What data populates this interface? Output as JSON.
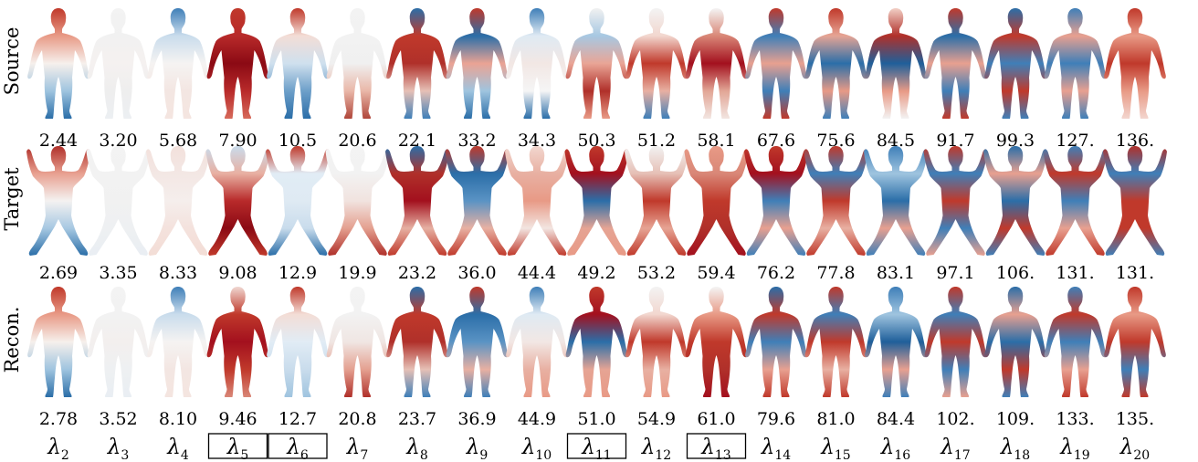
{
  "rows": [
    {
      "label": "Source",
      "values": [
        "2.44",
        "3.20",
        "5.68",
        "7.90",
        "10.5",
        "20.6",
        "22.1",
        "33.2",
        "34.3",
        "50.3",
        "51.2",
        "58.1",
        "67.6",
        "75.6",
        "84.5",
        "91.7",
        "99.3",
        "127.",
        "136."
      ]
    },
    {
      "label": "Target",
      "values": [
        "2.69",
        "3.35",
        "8.33",
        "9.08",
        "12.9",
        "19.9",
        "23.2",
        "36.0",
        "44.4",
        "49.2",
        "53.2",
        "59.4",
        "76.2",
        "77.8",
        "83.1",
        "97.1",
        "106.",
        "131.",
        "131."
      ]
    },
    {
      "label": "Recon.",
      "values": [
        "2.78",
        "3.52",
        "8.10",
        "9.46",
        "12.7",
        "20.8",
        "23.7",
        "36.9",
        "44.9",
        "51.0",
        "54.9",
        "61.0",
        "79.6",
        "81.0",
        "84.4",
        "102.",
        "109.",
        "133.",
        "135."
      ]
    }
  ],
  "eigen_symbol": "λ",
  "eigen_indices": [
    "2",
    "3",
    "4",
    "5",
    "6",
    "7",
    "8",
    "9",
    "10",
    "11",
    "12",
    "13",
    "14",
    "15",
    "16",
    "17",
    "18",
    "19",
    "20"
  ],
  "boxed_indices": [
    "5",
    "6",
    "11",
    "13"
  ],
  "colormap": {
    "negative": "#1b5a9c",
    "neutral": "#f7f7f7",
    "positive": "#a3101e"
  },
  "figures": [
    [
      [
        "#c0392b",
        "#e89a86",
        "#f6f0ec",
        "#9fc4df",
        "#2b6ea8"
      ],
      [
        "#f3f3f3",
        "#f1f1f1",
        "#f5f1f0",
        "#eeeeee",
        "#eceff2"
      ],
      [
        "#3f7fb8",
        "#c9dcec",
        "#f5f3f2",
        "#f3e6e2",
        "#f4e5e0"
      ],
      [
        "#c0392b",
        "#b82a2a",
        "#8b0a14",
        "#b82a2a",
        "#d66a5a"
      ],
      [
        "#c0392b",
        "#f3ddd6",
        "#cfe0ee",
        "#6d9fc9",
        "#2b6ea8"
      ],
      [
        "#f3f3f3",
        "#f2f2f2",
        "#f0f0f0",
        "#e9b7a8",
        "#b0463a"
      ],
      [
        "#2b6ea8",
        "#c0392b",
        "#b0302a",
        "#e6c0b6",
        "#3f7fb8"
      ],
      [
        "#c0392b",
        "#2b6ea8",
        "#eaa394",
        "#9fc4df",
        "#2b6ea8"
      ],
      [
        "#3f7fb8",
        "#dfeaf3",
        "#f2e7e4",
        "#f5f5f5",
        "#2b6ea8"
      ],
      [
        "#f1f1f1",
        "#a7c8e2",
        "#e9a596",
        "#b0302a",
        "#e89a86"
      ],
      [
        "#f3f3f3",
        "#f2d7cf",
        "#c0392b",
        "#e8b0a2",
        "#3f7fb8"
      ],
      [
        "#f4f4f4",
        "#d98777",
        "#a3101e",
        "#e2a696",
        "#f2e5e1"
      ],
      [
        "#c0392b",
        "#3f7fb8",
        "#e8a090",
        "#3f7fb8",
        "#c0392b"
      ],
      [
        "#c0392b",
        "#e6a494",
        "#2b6ea8",
        "#e89a86",
        "#3f7fb8"
      ],
      [
        "#f2d0c6",
        "#b0302a",
        "#1f5f9a",
        "#e89a86",
        "#f3f3f3"
      ],
      [
        "#c0392b",
        "#2b6ea8",
        "#e8a090",
        "#3f7fb8",
        "#c0392b"
      ],
      [
        "#2b6ea8",
        "#c0392b",
        "#3f7fb8",
        "#c0392b",
        "#3f7fb8"
      ],
      [
        "#3f7fb8",
        "#e8a090",
        "#3f7fb8",
        "#e8a090",
        "#3f7fb8"
      ],
      [
        "#c0392b",
        "#e89a86",
        "#c0392b",
        "#e89a86",
        "#f3d6cf"
      ]
    ],
    [
      [
        "#b0302a",
        "#e8a090",
        "#f4f2f1",
        "#a7c8e2",
        "#2b6ea8"
      ],
      [
        "#f3f3f3",
        "#f2f2f2",
        "#f1f1f1",
        "#eef0f2",
        "#e9eef3"
      ],
      [
        "#f3e1dc",
        "#f3e7e4",
        "#f5eeec",
        "#f4e2dd",
        "#f3ddd6"
      ],
      [
        "#c9dcec",
        "#e8b0a2",
        "#b82a2a",
        "#8b0a14",
        "#c0392b"
      ],
      [
        "#c0392b",
        "#e1ecf5",
        "#dfeaf3",
        "#c9dcec",
        "#2b6ea8"
      ],
      [
        "#f3f3f3",
        "#f2f2f2",
        "#f1e3df",
        "#e4a090",
        "#b0302a"
      ],
      [
        "#2b6ea8",
        "#b0302a",
        "#a3101e",
        "#e6b0a2",
        "#c0392b"
      ],
      [
        "#c0392b",
        "#2b6ea8",
        "#5a93c4",
        "#e8b0a2",
        "#c0392b"
      ],
      [
        "#f2d7cf",
        "#e8b0a2",
        "#e89a86",
        "#f2e5e1",
        "#c0392b"
      ],
      [
        "#c0392b",
        "#a3101e",
        "#2b6ea8",
        "#e6a494",
        "#e89a86"
      ],
      [
        "#f2f2f2",
        "#e6c0b6",
        "#c0392b",
        "#e6a494",
        "#c0392b"
      ],
      [
        "#e89a86",
        "#d98777",
        "#c0392b",
        "#b0302a",
        "#a3101e"
      ],
      [
        "#c0392b",
        "#a3101e",
        "#3f7fb8",
        "#e8a090",
        "#3f7fb8"
      ],
      [
        "#c0392b",
        "#3f7fb8",
        "#c0392b",
        "#e8b0a2",
        "#c0392b"
      ],
      [
        "#3f7fb8",
        "#9fc4df",
        "#2b6ea8",
        "#e8a090",
        "#3f7fb8"
      ],
      [
        "#c0392b",
        "#3f7fb8",
        "#c0392b",
        "#3f7fb8",
        "#e8a090"
      ],
      [
        "#2b6ea8",
        "#e8a090",
        "#2b6ea8",
        "#c0392b",
        "#3f7fb8"
      ],
      [
        "#3f7fb8",
        "#c0392b",
        "#3f7fb8",
        "#e8a090",
        "#c0392b"
      ],
      [
        "#b0302a",
        "#3f7fb8",
        "#c0392b",
        "#c0392b",
        "#3f7fb8"
      ]
    ],
    [
      [
        "#c0392b",
        "#e89a86",
        "#f6f0ec",
        "#9fc4df",
        "#2b6ea8"
      ],
      [
        "#f3f3f3",
        "#f2f2f2",
        "#f3efee",
        "#eef0f2",
        "#e9eef3"
      ],
      [
        "#3f7fb8",
        "#c9dcec",
        "#f5f3f2",
        "#f3e6e2",
        "#f4e5e0"
      ],
      [
        "#f0d8d2",
        "#c0392b",
        "#a3101e",
        "#c0392b",
        "#d98777"
      ],
      [
        "#c0392b",
        "#f3ddd6",
        "#e1ecf5",
        "#c9dcec",
        "#9fc4df"
      ],
      [
        "#f3f3f3",
        "#f2f2f2",
        "#f0e6e3",
        "#e4a090",
        "#b0302a"
      ],
      [
        "#2b6ea8",
        "#c0392b",
        "#b0302a",
        "#e6c0b6",
        "#3f7fb8"
      ],
      [
        "#c0392b",
        "#2b6ea8",
        "#5a93c4",
        "#e8b0a2",
        "#3f7fb8"
      ],
      [
        "#3f7fb8",
        "#dfeaf3",
        "#f2e7e4",
        "#e8b0a2",
        "#e89a86"
      ],
      [
        "#c0392b",
        "#a3101e",
        "#2b6ea8",
        "#e6a494",
        "#e89a86"
      ],
      [
        "#f3f3f3",
        "#f2d7cf",
        "#c0392b",
        "#e8b0a2",
        "#e89a86"
      ],
      [
        "#f4f4f4",
        "#e89a86",
        "#c0392b",
        "#b0302a",
        "#a3101e"
      ],
      [
        "#2b6ea8",
        "#c0392b",
        "#3f7fb8",
        "#e8a090",
        "#c0392b"
      ],
      [
        "#c0392b",
        "#3f7fb8",
        "#c0392b",
        "#e8b0a2",
        "#c0392b"
      ],
      [
        "#3f7fb8",
        "#9fc4df",
        "#1f5f9a",
        "#e8a090",
        "#3f7fb8"
      ],
      [
        "#c0392b",
        "#3f7fb8",
        "#c0392b",
        "#3f7fb8",
        "#e8a090"
      ],
      [
        "#2b6ea8",
        "#e8a090",
        "#2b6ea8",
        "#c0392b",
        "#3f7fb8"
      ],
      [
        "#3f7fb8",
        "#c0392b",
        "#3f7fb8",
        "#e8a090",
        "#c0392b"
      ],
      [
        "#c0392b",
        "#e89a86",
        "#c0392b",
        "#3f7fb8",
        "#c0392b"
      ]
    ]
  ]
}
